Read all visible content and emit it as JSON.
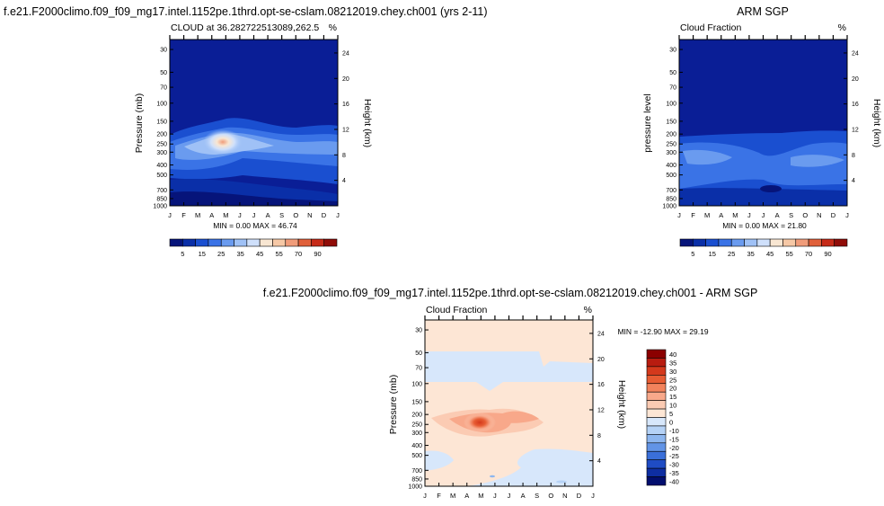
{
  "titles": {
    "left_main": "f.e21.F2000climo.f09_f09_mg17.intel.1152pe.1thrd.opt-se-cslam.08212019.chey.ch001 (yrs 2-11)",
    "right_main": "ARM SGP",
    "bottom_main": "f.e21.F2000climo.f09_f09_mg17.intel.1152pe.1thrd.opt-se-cslam.08212019.chey.ch001 - ARM SGP"
  },
  "chart_data": [
    {
      "type": "heatmap",
      "panel": "model",
      "subtitle_left": "CLOUD at 36.282722513089,262.5",
      "subtitle_right": "%",
      "ylabel": "Pressure (mb)",
      "ylabel_right": "Height (km)",
      "stats": "MIN =   0.00 MAX =  46.74",
      "x": [
        "J",
        "F",
        "M",
        "A",
        "M",
        "J",
        "J",
        "A",
        "S",
        "O",
        "N",
        "D",
        "J"
      ],
      "pressure_ticks": [
        "30",
        "50",
        "70",
        "100",
        "150",
        "200",
        "250",
        "300",
        "400",
        "500",
        "700",
        "850",
        "1000"
      ],
      "height_ticks": [
        "24",
        "20",
        "16",
        "12",
        "8",
        "4"
      ],
      "colorbar": {
        "labels": [
          "5",
          "15",
          "25",
          "35",
          "45",
          "55",
          "70",
          "90"
        ]
      },
      "max_value": 46.74,
      "max_location": {
        "month": "May",
        "pressure_mb": 250
      }
    },
    {
      "type": "heatmap",
      "panel": "obs",
      "subtitle_left": "Cloud Fraction",
      "subtitle_right": "%",
      "ylabel": "pressure level",
      "ylabel_right": "Height (km)",
      "stats": "MIN =   0.00 MAX =  21.80",
      "x": [
        "J",
        "F",
        "M",
        "A",
        "M",
        "J",
        "J",
        "A",
        "S",
        "O",
        "N",
        "D",
        "J"
      ],
      "pressure_ticks": [
        "30",
        "50",
        "70",
        "100",
        "150",
        "200",
        "250",
        "300",
        "400",
        "500",
        "700",
        "850",
        "1000"
      ],
      "height_ticks": [
        "24",
        "20",
        "16",
        "12",
        "8",
        "4"
      ],
      "colorbar": {
        "labels": [
          "5",
          "15",
          "25",
          "35",
          "45",
          "55",
          "70",
          "90"
        ]
      },
      "max_value": 21.8
    },
    {
      "type": "heatmap",
      "panel": "difference",
      "subtitle_left": "Cloud Fraction",
      "subtitle_right": "%",
      "ylabel": "Pressure (mb)",
      "ylabel_right": "Height (km)",
      "stats": "MIN = -12.90 MAX =  29.19",
      "x": [
        "J",
        "F",
        "M",
        "A",
        "M",
        "J",
        "J",
        "A",
        "S",
        "O",
        "N",
        "D",
        "J"
      ],
      "pressure_ticks": [
        "30",
        "50",
        "70",
        "100",
        "150",
        "200",
        "250",
        "300",
        "400",
        "500",
        "700",
        "850",
        "1000"
      ],
      "height_ticks": [
        "24",
        "20",
        "16",
        "12",
        "8",
        "4"
      ],
      "colorbar": {
        "labels": [
          "40",
          "35",
          "30",
          "25",
          "20",
          "15",
          "10",
          "5",
          "0",
          "-10",
          "-15",
          "-20",
          "-25",
          "-30",
          "-35",
          "-40"
        ]
      },
      "min_value": -12.9,
      "max_value": 29.19
    }
  ],
  "colors": {
    "seq": [
      "#06147a",
      "#0a2fa8",
      "#1a4fd0",
      "#3a73e6",
      "#6a9bef",
      "#9fc1f6",
      "#cfe0fb",
      "#f8e6d2",
      "#f6c8a6",
      "#f09c7a",
      "#e0603a",
      "#c62a18",
      "#900c08"
    ],
    "div": [
      "#8b0000",
      "#b81c10",
      "#d4391c",
      "#e75c33",
      "#f2835c",
      "#f8a88a",
      "#fbcbb3",
      "#fde6d5",
      "#d7e7fb",
      "#b5d2f6",
      "#8db6ef",
      "#6294e6",
      "#3a6fd9",
      "#1f4cc4",
      "#0e2ea2",
      "#020e6e"
    ],
    "model_bg": "#0a1e96",
    "obs_bg": "#0a1e96",
    "diff_bg": "#fde6d5"
  }
}
